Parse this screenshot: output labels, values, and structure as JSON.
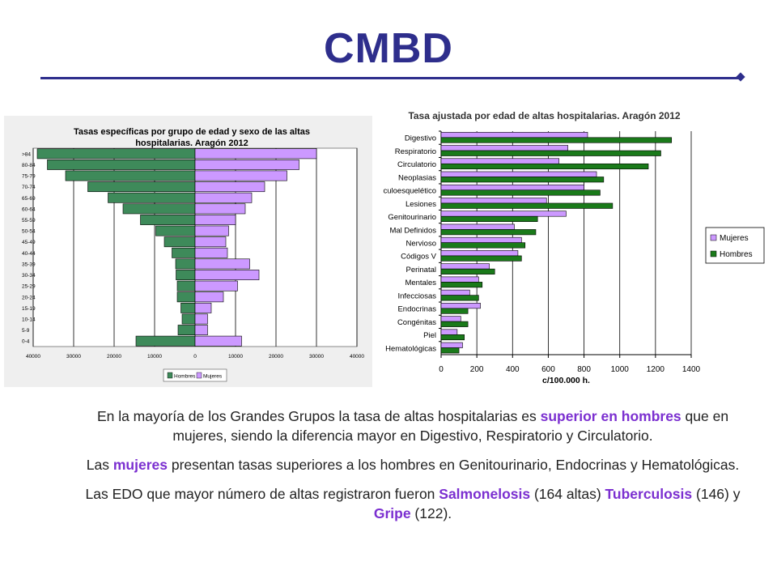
{
  "header": {
    "title": "CMBD"
  },
  "colors": {
    "mujeres": "#cc99ff",
    "hombres": "#1a7a1a",
    "hombres_pyramid": "#3e8a5a",
    "highlight": "#7b2fd0",
    "title": "#2e2e8c"
  },
  "chart_data": [
    {
      "type": "bar",
      "orientation": "horizontal",
      "title": "Tasas específicas por grupo de edad y sexo de las altas hospitalarias. Aragón 2012",
      "title_line1": "Tasas específicas por grupo de edad y sexo de las altas",
      "title_line2": "hospitalarias. Aragón 2012",
      "categories": [
        ">84",
        "80-84",
        "75-79",
        "70-74",
        "65-69",
        "60-64",
        "55-59",
        "50-54",
        "45-49",
        "40-44",
        "35-39",
        "30-34",
        "25-29",
        "20-24",
        "15-19",
        "10-14",
        "5-9",
        "0-4"
      ],
      "series": [
        {
          "name": "Hombres",
          "values": [
            39000,
            36500,
            32000,
            26500,
            21500,
            17800,
            13500,
            9700,
            7600,
            5700,
            4800,
            4700,
            4400,
            4400,
            3500,
            3200,
            4200,
            14600
          ]
        },
        {
          "name": "Mujeres",
          "values": [
            30000,
            25700,
            22700,
            17200,
            14000,
            12400,
            10000,
            8300,
            7600,
            8000,
            13500,
            15800,
            10500,
            7000,
            4000,
            3100,
            3100,
            11500
          ]
        }
      ],
      "xticks": [
        -40000,
        -30000,
        -20000,
        -10000,
        0,
        10000,
        20000,
        30000,
        40000
      ],
      "xtick_labels": [
        "40000",
        "30000",
        "20000",
        "10000",
        "0",
        "10000",
        "20000",
        "30000",
        "40000"
      ],
      "xlim": [
        -40000,
        40000
      ],
      "legend": [
        "Hombres",
        "Mujeres"
      ]
    },
    {
      "type": "bar",
      "orientation": "horizontal",
      "title": "Tasa ajustada por edad de altas hospitalarias. Aragón 2012",
      "xlabel": "c/100.000 h.",
      "categories": [
        "Digestivo",
        "Respiratorio",
        "Circulatorio",
        "Neoplasias",
        "Musculoesquelético",
        "Lesiones",
        "Genitourinario",
        "Mal Definidos",
        "Nervioso",
        "Códigos V",
        "Perinatal",
        "Mentales",
        "Infecciosas",
        "Endocrinas",
        "Congénitas",
        "Piel",
        "Hematológicas"
      ],
      "category_labels": [
        "Digestivo",
        "Respiratorio",
        "Circulatorio",
        "Neoplasias",
        "culoesquelético",
        "Lesiones",
        "Genitourinario",
        "Mal Definidos",
        "Nervioso",
        "Códigos V",
        "Perinatal",
        "Mentales",
        "Infecciosas",
        "Endocrinas",
        "Congénitas",
        "Piel",
        "Hematológicas"
      ],
      "series": [
        {
          "name": "Mujeres",
          "values": [
            820,
            710,
            660,
            870,
            800,
            590,
            700,
            410,
            450,
            430,
            270,
            210,
            160,
            220,
            110,
            90,
            120
          ]
        },
        {
          "name": "Hombres",
          "values": [
            1290,
            1230,
            1160,
            910,
            890,
            960,
            540,
            530,
            470,
            450,
            300,
            230,
            210,
            150,
            150,
            130,
            100
          ]
        }
      ],
      "xticks": [
        0,
        200,
        400,
        600,
        800,
        1000,
        1200,
        1400
      ],
      "xtick_labels": [
        "0",
        "200",
        "400",
        "600",
        "800",
        "1000",
        "1200",
        "1400"
      ],
      "xlim": [
        0,
        1400
      ],
      "legend": [
        "Mujeres",
        "Hombres"
      ]
    }
  ],
  "body_text": {
    "p1": {
      "a": "En la mayoría de los Grandes Grupos la tasa de altas hospitalarias es ",
      "b": "superior en hombres",
      "c": " que en mujeres, siendo la diferencia mayor en Digestivo, Respiratorio y Circulatorio."
    },
    "p2": {
      "a": "Las ",
      "b": "mujeres",
      "c": " presentan tasas superiores a los hombres en Genitourinario, Endocrinas y Hematológicas."
    },
    "p3": {
      "a": "Las EDO que mayor número de altas registraron fueron ",
      "b": "Salmonelosis",
      "c": " (164 altas) ",
      "d": "Tuberculosis",
      "e": " (146) y ",
      "f": "Gripe",
      "g": " (122)."
    }
  }
}
